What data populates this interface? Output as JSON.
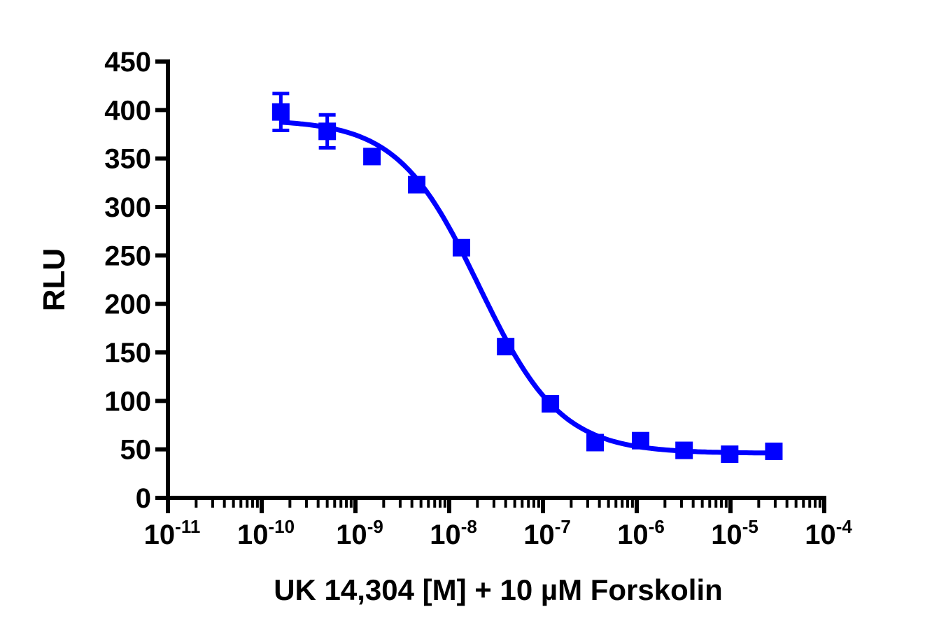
{
  "chart_data": {
    "type": "scatter",
    "title": "",
    "xlabel": "UK 14,304 [M] + 10 µM Forskolin",
    "ylabel": "RLU",
    "xscale": "log",
    "xlim": [
      1e-11,
      0.0001
    ],
    "ylim": [
      0,
      450
    ],
    "x_ticks": [
      {
        "base": "10",
        "exp": "-11"
      },
      {
        "base": "10",
        "exp": "-10"
      },
      {
        "base": "10",
        "exp": "-9"
      },
      {
        "base": "10",
        "exp": "-8"
      },
      {
        "base": "10",
        "exp": "-7"
      },
      {
        "base": "10",
        "exp": "-6"
      },
      {
        "base": "10",
        "exp": "-5"
      },
      {
        "base": "10",
        "exp": "-4"
      }
    ],
    "y_ticks": [
      "0",
      "50",
      "100",
      "150",
      "200",
      "250",
      "300",
      "350",
      "400",
      "450"
    ],
    "grid": false,
    "series": [
      {
        "name": "UK 14,304",
        "color": "#0000ff",
        "marker": "square",
        "x": [
          1.6e-10,
          5e-10,
          1.5e-09,
          4.5e-09,
          1.35e-08,
          4e-08,
          1.2e-07,
          3.6e-07,
          1.1e-06,
          3.2e-06,
          9.8e-06,
          2.9e-05
        ],
        "y": [
          398,
          378,
          352,
          323,
          258,
          156,
          97,
          57,
          59,
          49,
          45,
          48
        ],
        "yerr": [
          19,
          17,
          3,
          4,
          3,
          3,
          3,
          3,
          3,
          3,
          3,
          3
        ]
      }
    ],
    "fit": {
      "model": "4PL",
      "top": 390,
      "bottom": 46,
      "logIC50": -7.68,
      "hill": 1
    }
  }
}
